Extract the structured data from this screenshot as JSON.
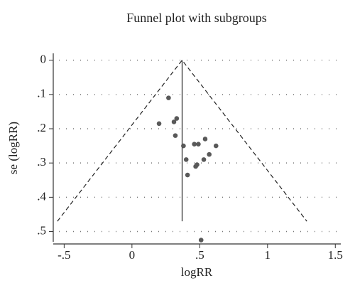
{
  "chart_data": {
    "type": "scatter",
    "title": "Funnel plot with subgroups",
    "x_label": "logRR",
    "y_label": "se (logRR)",
    "x": [
      0.27,
      0.2,
      0.31,
      0.33,
      0.32,
      0.38,
      0.46,
      0.49,
      0.54,
      0.62,
      0.57,
      0.53,
      0.4,
      0.47,
      0.41,
      0.48,
      0.51
    ],
    "y": [
      0.11,
      0.185,
      0.18,
      0.17,
      0.22,
      0.25,
      0.245,
      0.245,
      0.23,
      0.25,
      0.275,
      0.29,
      0.29,
      0.31,
      0.335,
      0.305,
      0.525
    ],
    "color": "#595959",
    "funnel": {
      "x": [
        -0.55,
        0.37,
        1.29
      ],
      "y": [
        0.47,
        0,
        0.47
      ]
    },
    "reference_line": {
      "x": [
        0.37,
        0.37
      ],
      "y": [
        0,
        0.47
      ]
    },
    "xlim": [
      -0.57,
      1.53
    ],
    "ylim": [
      -0.02,
      0.53
    ],
    "y_inverted": true,
    "xticks": [
      {
        "value": -0.5,
        "label": "-.5"
      },
      0,
      {
        "value": 0.5,
        "label": ".5"
      },
      1,
      1.5
    ],
    "yticks": [
      0,
      {
        "value": 0.1,
        "label": ".1"
      },
      {
        "value": 0.2,
        "label": ".2"
      },
      {
        "value": 0.3,
        "label": ".3"
      },
      {
        "value": 0.4,
        "label": ".4"
      },
      {
        "value": 0.5,
        "label": ".5"
      }
    ],
    "grid": true
  }
}
